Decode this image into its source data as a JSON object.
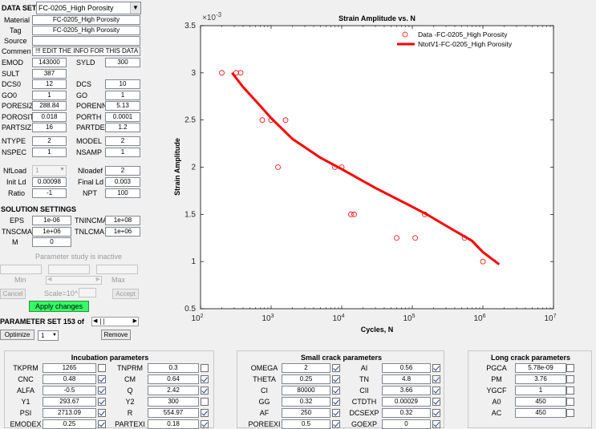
{
  "dataset": {
    "label": "DATA SET",
    "select_value": "FC-0205_High Porosity",
    "material_label": "Material",
    "material_value": "FC-0205_High Porosity",
    "tag_label": "Tag",
    "tag_value": "FC-0205_High Porosity",
    "source_label": "Source",
    "source_value": "",
    "comment_label": "Comment",
    "comment_value": "!!! EDIT THE INFO FOR THIS DATA"
  },
  "props": [
    {
      "label": "EMOD",
      "value": "143000",
      "label2": "SYLD",
      "value2": "300"
    },
    {
      "label": "SULT",
      "value": "387",
      "label2": "",
      "value2": ""
    },
    {
      "label": "DCS0",
      "value": "12",
      "label2": "DCS",
      "value2": "10"
    },
    {
      "label": "GO0",
      "value": "1",
      "label2": "GO",
      "value2": "1"
    },
    {
      "label": "PORESIZ",
      "value": "288.84",
      "label2": "PORENN",
      "value2": "5.13"
    },
    {
      "label": "POROSIT",
      "value": "0.018",
      "label2": "PORTH",
      "value2": "0.0001"
    },
    {
      "label": "PARTSIZ",
      "value": "16",
      "label2": "PARTDE",
      "value2": "1.2"
    },
    {
      "label": "NTYPE",
      "value": "2",
      "label2": "MODEL",
      "value2": "2"
    },
    {
      "label": "NSPEC",
      "value": "1",
      "label2": "NSAMP",
      "value2": "1"
    }
  ],
  "load": {
    "nfload_label": "NfLoad",
    "nfload_value": "1",
    "nloadef_label": "Nloadef",
    "nloadef_value": "2",
    "initld_label": "Init Ld",
    "initld_value": "0.00098",
    "finalld_label": "Final Ld",
    "finalld_value": "0.003",
    "ratio_label": "Ratio",
    "ratio_value": "-1",
    "npt_label": "NPT",
    "npt_value": "100"
  },
  "solution": {
    "title": "SOLUTION SETTINGS",
    "eps_label": "EPS",
    "eps_value": "1e-06",
    "tnincma_label": "TNINCMA",
    "tnincma_value": "1e+08",
    "tnscma_label": "TNSCMA",
    "tnscma_value": "1e+06",
    "tnlcma_label": "TNLCMA",
    "tnlcma_value": "1e+06",
    "m_label": "M",
    "m_value": "0"
  },
  "param_study": {
    "status": "Parameter study is inactive",
    "min_label": "Min",
    "max_label": "Max",
    "scale_label": "Scale=10^",
    "cancel_label": "Cancel",
    "accept_label": "Accept",
    "apply_label": "Apply changes",
    "set_label": "PARAMETER SET 153 of",
    "optimize_label": "Optimize",
    "optimize_value": "1",
    "remove_label": "Remove"
  },
  "chart_data": {
    "type": "scatter",
    "title": "Strain Amplitude vs. N",
    "xlabel": "Cycles, N",
    "ylabel": "Strain Amplitude",
    "xscale": "log",
    "xlim": [
      100,
      10000000
    ],
    "ylim": [
      0.5,
      3.5
    ],
    "y_multiplier": "×10",
    "y_multiplier_exp": "-3",
    "x_ticks": [
      2,
      3,
      4,
      5,
      6,
      7
    ],
    "x_tick_base": "10",
    "y_ticks": [
      "0.5",
      "1",
      "1.5",
      "2",
      "2.5",
      "3",
      "3.5"
    ],
    "legend_position": "top-right",
    "grid": false,
    "series": [
      {
        "name": "Data -FC-0205_High Porosity",
        "kind": "markers",
        "color": "#ff0000",
        "points": [
          [
            200,
            3.0
          ],
          [
            320,
            3.0
          ],
          [
            370,
            3.0
          ],
          [
            750,
            2.5
          ],
          [
            1000,
            2.5
          ],
          [
            1250,
            2.0
          ],
          [
            1600,
            2.5
          ],
          [
            8000,
            2.0
          ],
          [
            10000,
            2.0
          ],
          [
            13500,
            1.5
          ],
          [
            15000,
            1.5
          ],
          [
            60000,
            1.25
          ],
          [
            110000,
            1.25
          ],
          [
            150000,
            1.5
          ],
          [
            550000,
            1.25
          ],
          [
            1000000,
            1.0
          ]
        ]
      },
      {
        "name": "NtotV1-FC-0205_High Porosity",
        "kind": "line",
        "color": "#ff0000",
        "points": [
          [
            280,
            3.0
          ],
          [
            400,
            2.85
          ],
          [
            700,
            2.65
          ],
          [
            1000,
            2.52
          ],
          [
            2000,
            2.3
          ],
          [
            5000,
            2.1
          ],
          [
            10000,
            1.98
          ],
          [
            30000,
            1.78
          ],
          [
            100000,
            1.58
          ],
          [
            160000,
            1.5
          ],
          [
            300000,
            1.38
          ],
          [
            700000,
            1.22
          ],
          [
            1000000,
            1.1
          ],
          [
            1700000,
            0.97
          ]
        ]
      }
    ]
  },
  "incubation": {
    "title": "Incubation parameters",
    "rows": [
      {
        "l1": "TKPRM",
        "v1": "1265",
        "c1": false,
        "l2": "TNPRM",
        "v2": "0.3",
        "c2": false
      },
      {
        "l1": "CNC",
        "v1": "0.48",
        "c1": true,
        "l2": "CM",
        "v2": "0.64",
        "c2": true
      },
      {
        "l1": "ALFA",
        "v1": "-0.5",
        "c1": true,
        "l2": "Q",
        "v2": "2.42",
        "c2": true
      },
      {
        "l1": "Y1",
        "v1": "293.67",
        "c1": true,
        "l2": "Y2",
        "v2": "300",
        "c2": false
      },
      {
        "l1": "PSI",
        "v1": "2713.09",
        "c1": true,
        "l2": "R",
        "v2": "554.97",
        "c2": true
      },
      {
        "l1": "EMODEX",
        "v1": "0.25",
        "c1": true,
        "l2": "PARTEXI",
        "v2": "0.18",
        "c2": true
      }
    ]
  },
  "smallcrack": {
    "title": "Small crack parameters",
    "rows": [
      {
        "l1": "OMEGA",
        "v1": "2",
        "c1": true,
        "l2": "AI",
        "v2": "0.56",
        "c2": true
      },
      {
        "l1": "THETA",
        "v1": "0.25",
        "c1": true,
        "l2": "TN",
        "v2": "4.8",
        "c2": true
      },
      {
        "l1": "CI",
        "v1": "80000",
        "c1": true,
        "l2": "CII",
        "v2": "3.66",
        "c2": true
      },
      {
        "l1": "GG",
        "v1": "0.32",
        "c1": true,
        "l2": "CTDTH",
        "v2": "0.00029",
        "c2": true
      },
      {
        "l1": "AF",
        "v1": "250",
        "c1": true,
        "l2": "DCSEXP",
        "v2": "0.32",
        "c2": true
      },
      {
        "l1": "POREEXI",
        "v1": "0.5",
        "c1": true,
        "l2": "GOEXP",
        "v2": "0",
        "c2": true
      }
    ]
  },
  "longcrack": {
    "title": "Long crack parameters",
    "rows": [
      {
        "l1": "PGCA",
        "v1": "5.78e-09",
        "c1": false
      },
      {
        "l1": "PM",
        "v1": "3.76",
        "c1": false
      },
      {
        "l1": "YGCF",
        "v1": "1",
        "c1": false
      },
      {
        "l1": "A0",
        "v1": "450",
        "c1": false
      },
      {
        "l1": "AC",
        "v1": "450",
        "c1": false
      }
    ]
  },
  "colors": {
    "apply_bg": "#33ff66",
    "curve": "#ff0000",
    "muted": "#9b9b9b"
  }
}
